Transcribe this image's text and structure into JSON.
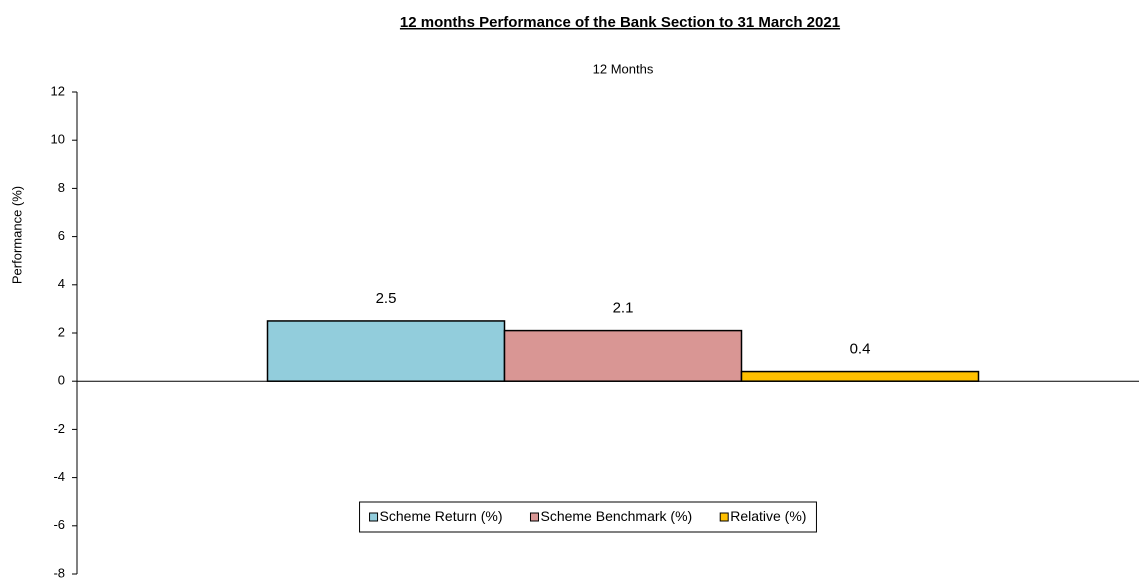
{
  "chart_data": {
    "type": "bar",
    "title": "12 months Performance of the Bank Section to 31 March 2021",
    "ylabel": "Performance (%)",
    "categories": [
      "12 Months"
    ],
    "series": [
      {
        "name": "Scheme Return (%)",
        "color": "#92cddc",
        "values": [
          2.5
        ]
      },
      {
        "name": "Scheme Benchmark (%)",
        "color": "#d99694",
        "values": [
          2.1
        ]
      },
      {
        "name": "Relative (%)",
        "color": "#ffc000",
        "values": [
          0.4
        ]
      }
    ],
    "ylim": [
      -8,
      12
    ],
    "yticks": [
      -8,
      -6,
      -4,
      -2,
      0,
      2,
      4,
      6,
      8,
      10,
      12
    ],
    "grid": false,
    "legend": "lower center"
  }
}
